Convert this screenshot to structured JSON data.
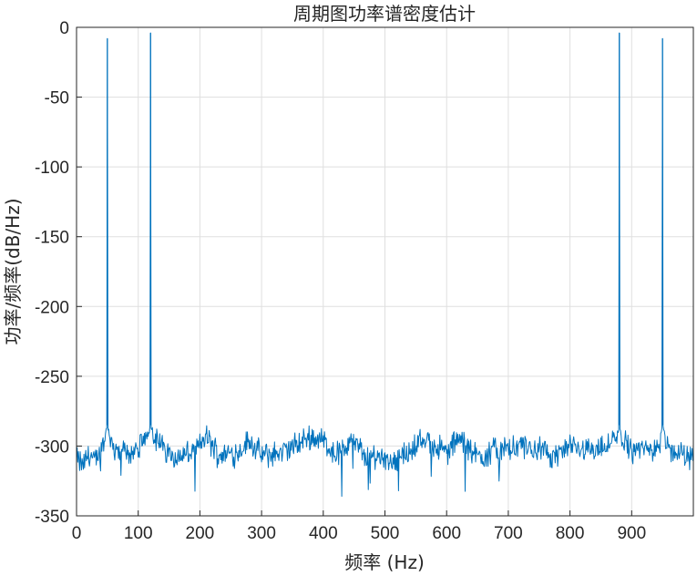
{
  "chart_data": {
    "type": "line",
    "title": "周期图功率谱密度估计",
    "xlabel": "频率 (Hz)",
    "ylabel": "功率/频率(dB/Hz)",
    "xlim": [
      0,
      1000
    ],
    "ylim": [
      -350,
      0
    ],
    "xticks": [
      0,
      100,
      200,
      300,
      400,
      500,
      600,
      700,
      800,
      900
    ],
    "yticks": [
      0,
      -50,
      -100,
      -150,
      -200,
      -250,
      -300,
      -350
    ],
    "grid": true,
    "legend": "none",
    "line_color": "#0072BD",
    "series": [
      {
        "noise_floor_points": [
          [
            0,
            -309
          ],
          [
            10,
            -314
          ],
          [
            20,
            -305
          ],
          [
            30,
            -312
          ],
          [
            40,
            -301
          ],
          [
            50,
            -296
          ],
          [
            60,
            -300
          ],
          [
            80,
            -305
          ],
          [
            100,
            -303
          ],
          [
            120,
            -291
          ],
          [
            140,
            -301
          ],
          [
            160,
            -308
          ],
          [
            180,
            -306
          ],
          [
            200,
            -300
          ],
          [
            210,
            -293
          ],
          [
            230,
            -306
          ],
          [
            260,
            -305
          ],
          [
            280,
            -296
          ],
          [
            300,
            -307
          ],
          [
            330,
            -305
          ],
          [
            350,
            -301
          ],
          [
            380,
            -293
          ],
          [
            400,
            -296
          ],
          [
            420,
            -306
          ],
          [
            450,
            -297
          ],
          [
            470,
            -308
          ],
          [
            500,
            -307
          ],
          [
            510,
            -311
          ],
          [
            540,
            -304
          ],
          [
            560,
            -295
          ],
          [
            580,
            -299
          ],
          [
            600,
            -305
          ],
          [
            620,
            -294
          ],
          [
            640,
            -305
          ],
          [
            660,
            -307
          ],
          [
            680,
            -302
          ],
          [
            700,
            -303
          ],
          [
            720,
            -300
          ],
          [
            750,
            -303
          ],
          [
            770,
            -307
          ],
          [
            800,
            -302
          ],
          [
            820,
            -301
          ],
          [
            850,
            -303
          ],
          [
            880,
            -293
          ],
          [
            900,
            -303
          ],
          [
            930,
            -302
          ],
          [
            950,
            -297
          ],
          [
            970,
            -305
          ],
          [
            990,
            -307
          ],
          [
            1000,
            -309
          ]
        ],
        "peaks": [
          {
            "x": 50,
            "y": -8
          },
          {
            "x": 120,
            "y": -4
          },
          {
            "x": 880,
            "y": -4
          },
          {
            "x": 950,
            "y": -8
          }
        ]
      }
    ]
  }
}
